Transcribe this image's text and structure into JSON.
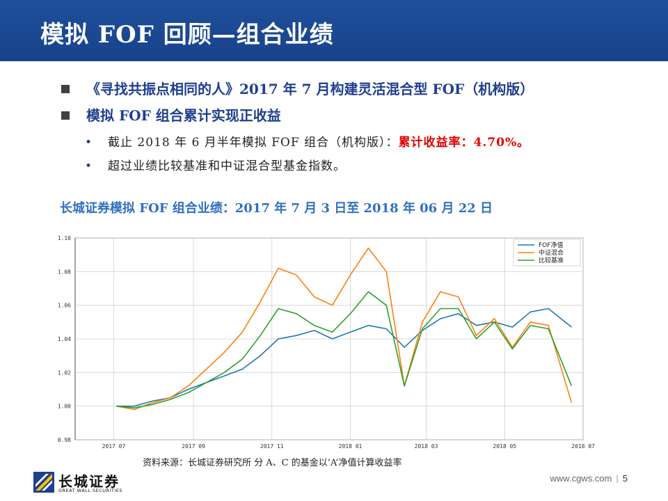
{
  "slide": {
    "title": "模拟 FOF 回顾—组合业绩",
    "bullets": [
      "《寻找共振点相同的人》2017 年 7 月构建灵活混合型 FOF（机构版）",
      "模拟 FOF 组合累计实现正收益"
    ],
    "sub_bullets": {
      "line1_text": "截止 2018 年 6 月半年模拟 FOF 组合（机构版）：",
      "line1_highlight": "累计收益率：4.70%。",
      "line2_text": "超过业绩比较基准和中证混合型基金指数。"
    },
    "bullet_marker": "•",
    "chart_title": "长城证券模拟 FOF 组合业绩：2017 年 7 月 3 日至 2018 年 06 月 22 日",
    "source": "资料来源：长城证券研究所  分 A、C 的基金以’A’净值计算收益率"
  },
  "logo": {
    "name_cn": "长城证券",
    "name_en": "GREAT WALL SECURITIES"
  },
  "footer": {
    "website": "www.cgws.com",
    "separator": "|",
    "page": "5"
  },
  "colors": {
    "title_bar": "#1f4f9c",
    "bullet_text": "#1f3f8f",
    "highlight": "#e00000",
    "chart_title": "#2f6fc0"
  },
  "chart_data": {
    "type": "line",
    "title": "",
    "xlabel": "",
    "ylabel": "",
    "x": [
      "2017-07-03",
      "2017-07-17",
      "2017-07-31",
      "2017-08-14",
      "2017-08-28",
      "2017-09-11",
      "2017-09-25",
      "2017-10-09",
      "2017-10-23",
      "2017-11-06",
      "2017-11-20",
      "2017-12-04",
      "2017-12-18",
      "2018-01-01",
      "2018-01-15",
      "2018-01-29",
      "2018-02-12",
      "2018-02-26",
      "2018-03-12",
      "2018-03-26",
      "2018-04-09",
      "2018-04-23",
      "2018-05-07",
      "2018-05-21",
      "2018-06-04",
      "2018-06-22"
    ],
    "series": [
      {
        "name": "FOF净值",
        "color": "#1f77b4",
        "values": [
          1.0,
          1.0,
          1.003,
          1.005,
          1.01,
          1.014,
          1.018,
          1.022,
          1.03,
          1.04,
          1.042,
          1.045,
          1.04,
          1.044,
          1.048,
          1.046,
          1.035,
          1.045,
          1.052,
          1.055,
          1.048,
          1.05,
          1.047,
          1.056,
          1.058,
          1.047
        ]
      },
      {
        "name": "中证混合",
        "color": "#ff7f0e",
        "values": [
          1.0,
          0.998,
          1.002,
          1.005,
          1.012,
          1.022,
          1.032,
          1.044,
          1.062,
          1.082,
          1.078,
          1.065,
          1.06,
          1.078,
          1.094,
          1.08,
          1.012,
          1.05,
          1.068,
          1.065,
          1.042,
          1.052,
          1.035,
          1.05,
          1.048,
          1.002
        ]
      },
      {
        "name": "比较基准",
        "color": "#2ca02c",
        "values": [
          1.0,
          0.999,
          1.001,
          1.004,
          1.008,
          1.014,
          1.02,
          1.028,
          1.042,
          1.058,
          1.055,
          1.048,
          1.044,
          1.055,
          1.068,
          1.06,
          1.012,
          1.046,
          1.058,
          1.058,
          1.04,
          1.05,
          1.034,
          1.048,
          1.046,
          1.012
        ]
      }
    ],
    "ylim": [
      0.98,
      1.1
    ],
    "yticks": [
      "0.98",
      "1.00",
      "1.02",
      "1.04",
      "1.06",
      "1.08",
      "1.10"
    ],
    "xticks": [
      "2017 07",
      "2017 09",
      "2017 11",
      "2018 01",
      "2018 03",
      "2018 05",
      "2018 07"
    ],
    "xtick_dates": [
      "2017-07-01",
      "2017-09-01",
      "2017-11-01",
      "2018-01-01",
      "2018-03-01",
      "2018-05-01",
      "2018-07-01"
    ],
    "xlim": [
      "2017-06-01",
      "2018-07-01"
    ],
    "grid": true,
    "legend_position": "top-right"
  }
}
